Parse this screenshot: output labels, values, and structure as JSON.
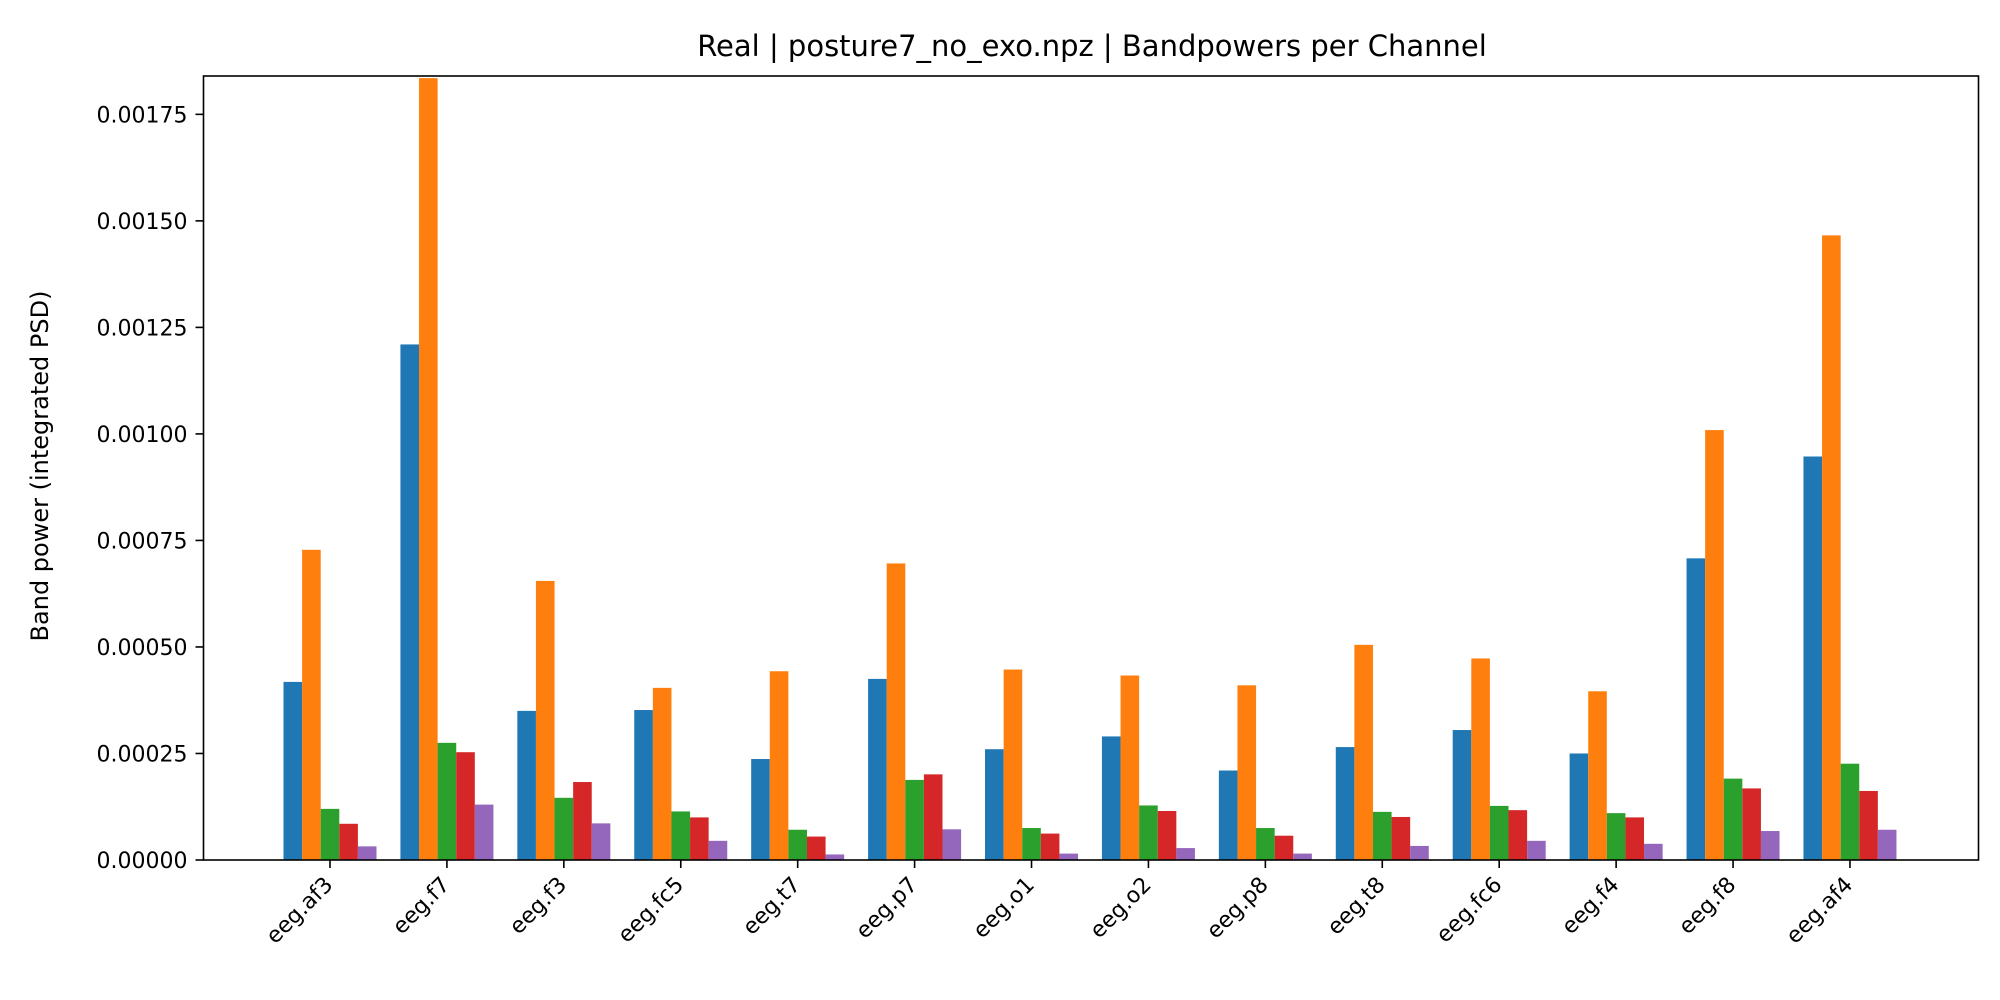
{
  "chart_data": {
    "type": "bar",
    "title": "Real | posture7_no_exo.npz | Bandpowers per Channel",
    "xlabel": "",
    "ylabel": "Band power (integrated PSD)",
    "ylim": [
      0,
      0.00184
    ],
    "yticks": [
      "0.00000",
      "0.00025",
      "0.00050",
      "0.00075",
      "0.00100",
      "0.00125",
      "0.00150",
      "0.00175"
    ],
    "ytick_values": [
      0,
      0.00025,
      0.0005,
      0.00075,
      0.001,
      0.00125,
      0.0015,
      0.00175
    ],
    "grid": false,
    "legend": "none",
    "categories": [
      "eeg.af3",
      "eeg.f7",
      "eeg.f3",
      "eeg.fc5",
      "eeg.t7",
      "eeg.p7",
      "eeg.o1",
      "eeg.o2",
      "eeg.p8",
      "eeg.t8",
      "eeg.fc6",
      "eeg.f4",
      "eeg.f8",
      "eeg.af4"
    ],
    "series": [
      {
        "color": "#1f77b4",
        "values": [
          0.000418,
          0.00121,
          0.00035,
          0.000352,
          0.000237,
          0.000425,
          0.00026,
          0.00029,
          0.00021,
          0.000265,
          0.000305,
          0.00025,
          0.000708,
          0.000947
        ]
      },
      {
        "color": "#ff7f0e",
        "values": [
          0.000728,
          0.001835,
          0.000655,
          0.000404,
          0.000443,
          0.000696,
          0.000447,
          0.000433,
          0.00041,
          0.000505,
          0.000473,
          0.000396,
          0.001009,
          0.001466
        ]
      },
      {
        "color": "#2ca02c",
        "values": [
          0.00012,
          0.000275,
          0.000146,
          0.000114,
          7.1e-05,
          0.000188,
          7.5e-05,
          0.000128,
          7.5e-05,
          0.000113,
          0.000127,
          0.00011,
          0.000191,
          0.000226
        ]
      },
      {
        "color": "#d62728",
        "values": [
          8.5e-05,
          0.000253,
          0.000183,
          0.0001,
          5.5e-05,
          0.000201,
          6.2e-05,
          0.000115,
          5.7e-05,
          0.000101,
          0.000117,
          0.0001,
          0.000168,
          0.000162
        ]
      },
      {
        "color": "#9467bd",
        "values": [
          3.2e-05,
          0.00013,
          8.6e-05,
          4.5e-05,
          1.3e-05,
          7.2e-05,
          1.5e-05,
          2.8e-05,
          1.5e-05,
          3.3e-05,
          4.5e-05,
          3.8e-05,
          6.8e-05,
          7.1e-05
        ]
      }
    ]
  }
}
